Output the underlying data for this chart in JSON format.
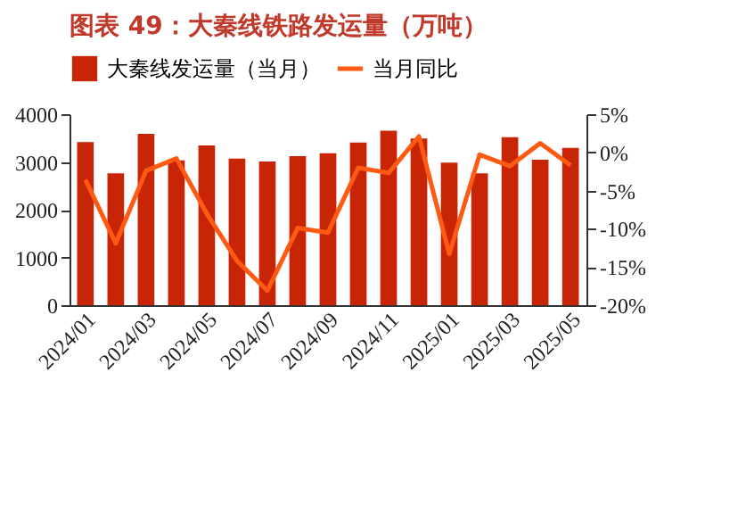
{
  "chart_data": {
    "type": "bar",
    "title": "图表 49：大秦线铁路发运量（万吨）",
    "categories": [
      "2024/01",
      null,
      "2024/03",
      null,
      "2024/05",
      null,
      "2024/07",
      null,
      "2024/09",
      null,
      "2024/11",
      null,
      "2025/01",
      null,
      "2025/03",
      null,
      "2025/05"
    ],
    "series": [
      {
        "name": "大秦线发运量（当月）",
        "color": "#c82406",
        "values": [
          3418,
          2762,
          3591,
          3034,
          3344,
          3071,
          3009,
          3121,
          3183,
          3406,
          3653,
          3492,
          2984,
          2762,
          3517,
          3046,
          3294
        ]
      },
      {
        "name": "当月同比",
        "type": "line",
        "axis": "y2",
        "color": "#ff5a14",
        "values": [
          -3.6,
          -11.9,
          -2.4,
          -0.8,
          -8.0,
          -14.2,
          -18.1,
          -9.9,
          -10.5,
          -2.0,
          -2.7,
          2.1,
          -13.3,
          -0.3,
          -1.8,
          1.2,
          -1.7
        ]
      }
    ],
    "ylim": [
      0,
      4000
    ],
    "yticks": [
      0,
      1000,
      2000,
      3000,
      4000
    ],
    "y2lim": [
      -20,
      5
    ],
    "y2ticks": [
      {
        "value": -20,
        "label": "-20%"
      },
      {
        "value": -15,
        "label": "-15%"
      },
      {
        "value": -10,
        "label": "-10%"
      },
      {
        "value": -5,
        "label": "-5%"
      },
      {
        "value": 0,
        "label": "0%"
      },
      {
        "value": 5,
        "label": "5%"
      }
    ],
    "legend": "top",
    "grid": false
  }
}
